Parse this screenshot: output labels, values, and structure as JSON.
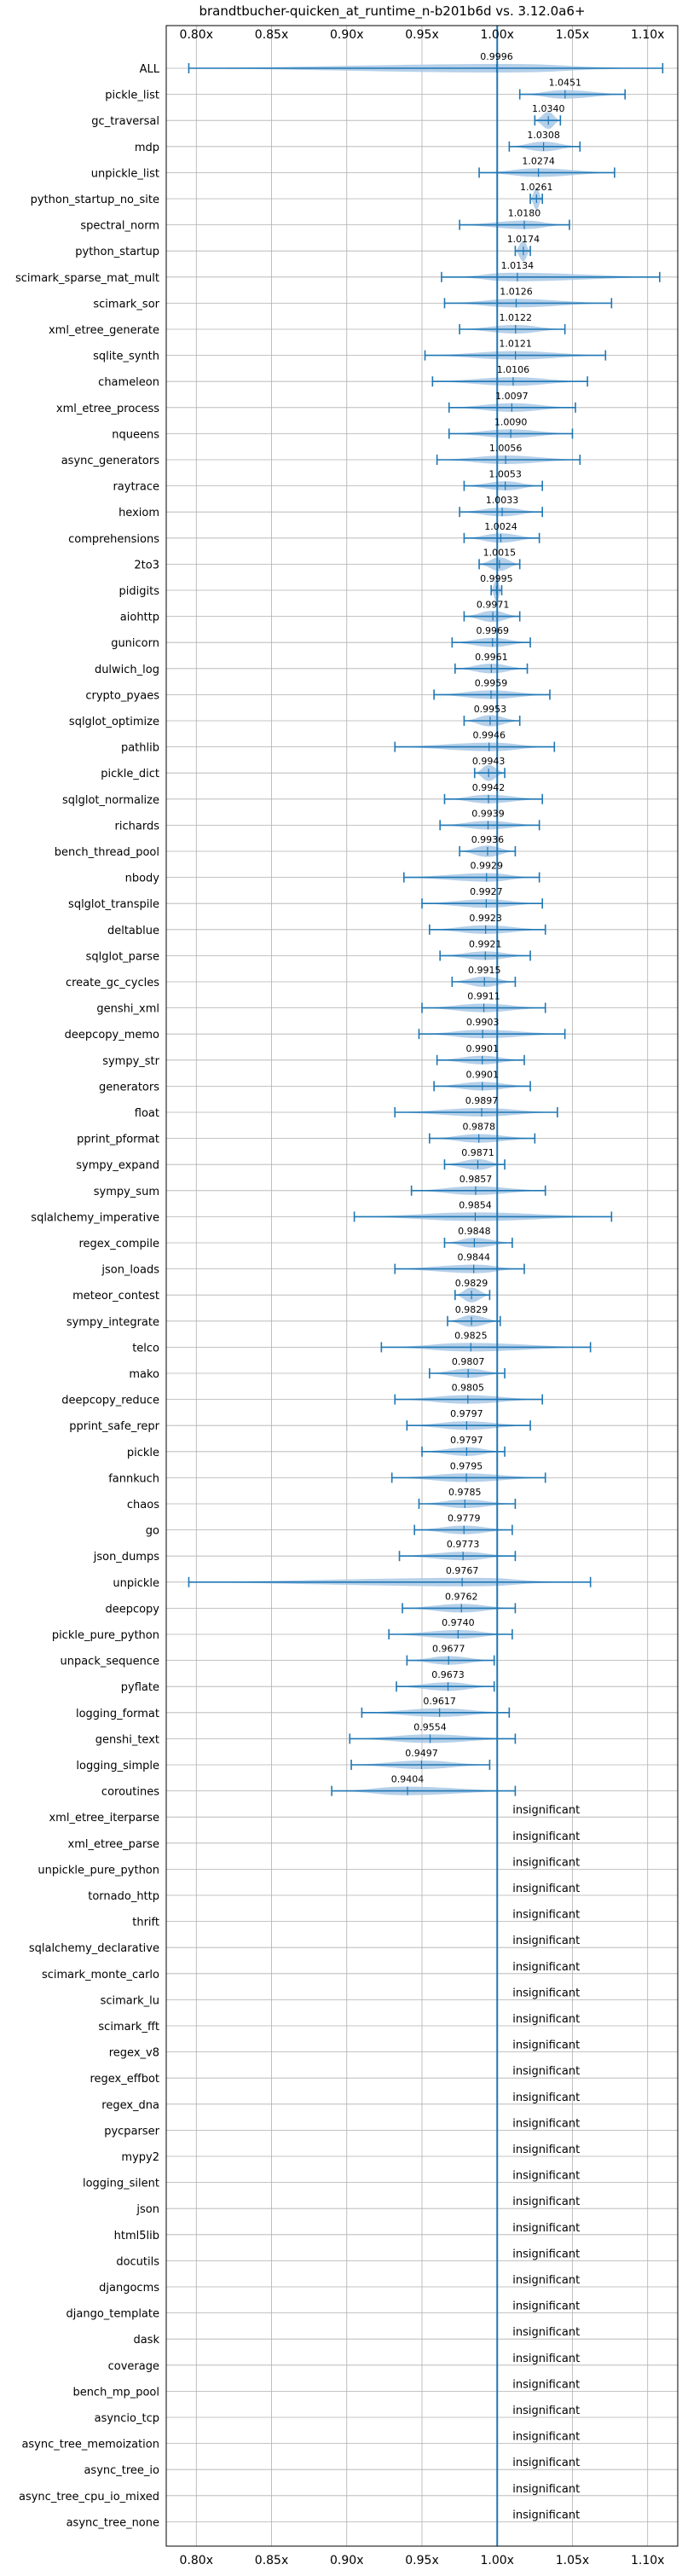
{
  "chart_data": {
    "type": "violin",
    "title": "brandtbucher-quicken_at_runtime_n-b201b6d vs. 3.12.0a6+",
    "xlim": [
      0.78,
      1.12
    ],
    "xticks": [
      "0.80x",
      "0.85x",
      "0.90x",
      "0.95x",
      "1.00x",
      "1.05x",
      "1.10x"
    ],
    "xtick_values": [
      0.8,
      0.85,
      0.9,
      0.95,
      1.0,
      1.05,
      1.1
    ],
    "reference_line": 1.0,
    "grid": true,
    "insignificant_label": "insignificant",
    "benchmarks": [
      {
        "name": "ALL",
        "median": 0.9996,
        "min": 0.795,
        "max": 1.11,
        "label": "0.9996"
      },
      {
        "name": "pickle_list",
        "median": 1.0451,
        "min": 1.015,
        "max": 1.085,
        "label": "1.0451"
      },
      {
        "name": "gc_traversal",
        "median": 1.034,
        "min": 1.025,
        "max": 1.042,
        "label": "1.0340"
      },
      {
        "name": "mdp",
        "median": 1.0308,
        "min": 1.008,
        "max": 1.055,
        "label": "1.0308"
      },
      {
        "name": "unpickle_list",
        "median": 1.0274,
        "min": 0.988,
        "max": 1.078,
        "label": "1.0274"
      },
      {
        "name": "python_startup_no_site",
        "median": 1.0261,
        "min": 1.022,
        "max": 1.03,
        "label": "1.0261"
      },
      {
        "name": "spectral_norm",
        "median": 1.018,
        "min": 0.975,
        "max": 1.048,
        "label": "1.0180"
      },
      {
        "name": "python_startup",
        "median": 1.0174,
        "min": 1.012,
        "max": 1.022,
        "label": "1.0174"
      },
      {
        "name": "scimark_sparse_mat_mult",
        "median": 1.0134,
        "min": 0.963,
        "max": 1.108,
        "label": "1.0134"
      },
      {
        "name": "scimark_sor",
        "median": 1.0126,
        "min": 0.965,
        "max": 1.076,
        "label": "1.0126"
      },
      {
        "name": "xml_etree_generate",
        "median": 1.0122,
        "min": 0.975,
        "max": 1.045,
        "label": "1.0122"
      },
      {
        "name": "sqlite_synth",
        "median": 1.0121,
        "min": 0.952,
        "max": 1.072,
        "label": "1.0121"
      },
      {
        "name": "chameleon",
        "median": 1.0106,
        "min": 0.957,
        "max": 1.06,
        "label": "1.0106"
      },
      {
        "name": "xml_etree_process",
        "median": 1.0097,
        "min": 0.968,
        "max": 1.052,
        "label": "1.0097"
      },
      {
        "name": "nqueens",
        "median": 1.009,
        "min": 0.968,
        "max": 1.05,
        "label": "1.0090"
      },
      {
        "name": "async_generators",
        "median": 1.0056,
        "min": 0.96,
        "max": 1.055,
        "label": "1.0056"
      },
      {
        "name": "raytrace",
        "median": 1.0053,
        "min": 0.978,
        "max": 1.03,
        "label": "1.0053"
      },
      {
        "name": "hexiom",
        "median": 1.0033,
        "min": 0.975,
        "max": 1.03,
        "label": "1.0033"
      },
      {
        "name": "comprehensions",
        "median": 1.0024,
        "min": 0.978,
        "max": 1.028,
        "label": "1.0024"
      },
      {
        "name": "2to3",
        "median": 1.0015,
        "min": 0.988,
        "max": 1.015,
        "label": "1.0015"
      },
      {
        "name": "pidigits",
        "median": 0.9995,
        "min": 0.996,
        "max": 1.003,
        "label": "0.9995"
      },
      {
        "name": "aiohttp",
        "median": 0.9971,
        "min": 0.978,
        "max": 1.015,
        "label": "0.9971"
      },
      {
        "name": "gunicorn",
        "median": 0.9969,
        "min": 0.97,
        "max": 1.022,
        "label": "0.9969"
      },
      {
        "name": "dulwich_log",
        "median": 0.9961,
        "min": 0.972,
        "max": 1.02,
        "label": "0.9961"
      },
      {
        "name": "crypto_pyaes",
        "median": 0.9959,
        "min": 0.958,
        "max": 1.035,
        "label": "0.9959"
      },
      {
        "name": "sqlglot_optimize",
        "median": 0.9953,
        "min": 0.978,
        "max": 1.015,
        "label": "0.9953"
      },
      {
        "name": "pathlib",
        "median": 0.9946,
        "min": 0.932,
        "max": 1.038,
        "label": "0.9946"
      },
      {
        "name": "pickle_dict",
        "median": 0.9943,
        "min": 0.985,
        "max": 1.005,
        "label": "0.9943"
      },
      {
        "name": "sqlglot_normalize",
        "median": 0.9942,
        "min": 0.965,
        "max": 1.03,
        "label": "0.9942"
      },
      {
        "name": "richards",
        "median": 0.9939,
        "min": 0.962,
        "max": 1.028,
        "label": "0.9939"
      },
      {
        "name": "bench_thread_pool",
        "median": 0.9936,
        "min": 0.975,
        "max": 1.012,
        "label": "0.9936"
      },
      {
        "name": "nbody",
        "median": 0.9929,
        "min": 0.938,
        "max": 1.028,
        "label": "0.9929"
      },
      {
        "name": "sqlglot_transpile",
        "median": 0.9927,
        "min": 0.95,
        "max": 1.03,
        "label": "0.9927"
      },
      {
        "name": "deltablue",
        "median": 0.9923,
        "min": 0.955,
        "max": 1.032,
        "label": "0.9923"
      },
      {
        "name": "sqlglot_parse",
        "median": 0.9921,
        "min": 0.962,
        "max": 1.022,
        "label": "0.9921"
      },
      {
        "name": "create_gc_cycles",
        "median": 0.9915,
        "min": 0.97,
        "max": 1.012,
        "label": "0.9915"
      },
      {
        "name": "genshi_xml",
        "median": 0.9911,
        "min": 0.95,
        "max": 1.032,
        "label": "0.9911"
      },
      {
        "name": "deepcopy_memo",
        "median": 0.9903,
        "min": 0.948,
        "max": 1.045,
        "label": "0.9903"
      },
      {
        "name": "sympy_str",
        "median": 0.9901,
        "min": 0.96,
        "max": 1.018,
        "label": "0.9901"
      },
      {
        "name": "generators",
        "median": 0.9901,
        "min": 0.958,
        "max": 1.022,
        "label": "0.9901"
      },
      {
        "name": "float",
        "median": 0.9897,
        "min": 0.932,
        "max": 1.04,
        "label": "0.9897"
      },
      {
        "name": "pprint_pformat",
        "median": 0.9878,
        "min": 0.955,
        "max": 1.025,
        "label": "0.9878"
      },
      {
        "name": "sympy_expand",
        "median": 0.9871,
        "min": 0.965,
        "max": 1.005,
        "label": "0.9871"
      },
      {
        "name": "sympy_sum",
        "median": 0.9857,
        "min": 0.943,
        "max": 1.032,
        "label": "0.9857"
      },
      {
        "name": "sqlalchemy_imperative",
        "median": 0.9854,
        "min": 0.905,
        "max": 1.076,
        "label": "0.9854"
      },
      {
        "name": "regex_compile",
        "median": 0.9848,
        "min": 0.965,
        "max": 1.01,
        "label": "0.9848"
      },
      {
        "name": "json_loads",
        "median": 0.9844,
        "min": 0.932,
        "max": 1.018,
        "label": "0.9844"
      },
      {
        "name": "meteor_contest",
        "median": 0.9829,
        "min": 0.972,
        "max": 0.995,
        "label": "0.9829"
      },
      {
        "name": "sympy_integrate",
        "median": 0.9829,
        "min": 0.967,
        "max": 1.002,
        "label": "0.9829"
      },
      {
        "name": "telco",
        "median": 0.9825,
        "min": 0.923,
        "max": 1.062,
        "label": "0.9825"
      },
      {
        "name": "mako",
        "median": 0.9807,
        "min": 0.955,
        "max": 1.005,
        "label": "0.9807"
      },
      {
        "name": "deepcopy_reduce",
        "median": 0.9805,
        "min": 0.932,
        "max": 1.03,
        "label": "0.9805"
      },
      {
        "name": "pprint_safe_repr",
        "median": 0.9797,
        "min": 0.94,
        "max": 1.022,
        "label": "0.9797"
      },
      {
        "name": "pickle",
        "median": 0.9797,
        "min": 0.95,
        "max": 1.005,
        "label": "0.9797"
      },
      {
        "name": "fannkuch",
        "median": 0.9795,
        "min": 0.93,
        "max": 1.032,
        "label": "0.9795"
      },
      {
        "name": "chaos",
        "median": 0.9785,
        "min": 0.948,
        "max": 1.012,
        "label": "0.9785"
      },
      {
        "name": "go",
        "median": 0.9779,
        "min": 0.945,
        "max": 1.01,
        "label": "0.9779"
      },
      {
        "name": "json_dumps",
        "median": 0.9773,
        "min": 0.935,
        "max": 1.012,
        "label": "0.9773"
      },
      {
        "name": "unpickle",
        "median": 0.9767,
        "min": 0.795,
        "max": 1.062,
        "label": "0.9767"
      },
      {
        "name": "deepcopy",
        "median": 0.9762,
        "min": 0.937,
        "max": 1.012,
        "label": "0.9762"
      },
      {
        "name": "pickle_pure_python",
        "median": 0.974,
        "min": 0.928,
        "max": 1.01,
        "label": "0.9740"
      },
      {
        "name": "unpack_sequence",
        "median": 0.9677,
        "min": 0.94,
        "max": 0.998,
        "label": "0.9677"
      },
      {
        "name": "pyflate",
        "median": 0.9673,
        "min": 0.933,
        "max": 0.998,
        "label": "0.9673"
      },
      {
        "name": "logging_format",
        "median": 0.9617,
        "min": 0.91,
        "max": 1.008,
        "label": "0.9617"
      },
      {
        "name": "genshi_text",
        "median": 0.9554,
        "min": 0.902,
        "max": 1.012,
        "label": "0.9554"
      },
      {
        "name": "logging_simple",
        "median": 0.9497,
        "min": 0.903,
        "max": 0.995,
        "label": "0.9497"
      },
      {
        "name": "coroutines",
        "median": 0.9404,
        "min": 0.89,
        "max": 1.012,
        "label": "0.9404"
      },
      {
        "name": "xml_etree_iterparse",
        "insignificant": true
      },
      {
        "name": "xml_etree_parse",
        "insignificant": true
      },
      {
        "name": "unpickle_pure_python",
        "insignificant": true
      },
      {
        "name": "tornado_http",
        "insignificant": true
      },
      {
        "name": "thrift",
        "insignificant": true
      },
      {
        "name": "sqlalchemy_declarative",
        "insignificant": true
      },
      {
        "name": "scimark_monte_carlo",
        "insignificant": true
      },
      {
        "name": "scimark_lu",
        "insignificant": true
      },
      {
        "name": "scimark_fft",
        "insignificant": true
      },
      {
        "name": "regex_v8",
        "insignificant": true
      },
      {
        "name": "regex_effbot",
        "insignificant": true
      },
      {
        "name": "regex_dna",
        "insignificant": true
      },
      {
        "name": "pycparser",
        "insignificant": true
      },
      {
        "name": "mypy2",
        "insignificant": true
      },
      {
        "name": "logging_silent",
        "insignificant": true
      },
      {
        "name": "json",
        "insignificant": true
      },
      {
        "name": "html5lib",
        "insignificant": true
      },
      {
        "name": "docutils",
        "insignificant": true
      },
      {
        "name": "djangocms",
        "insignificant": true
      },
      {
        "name": "django_template",
        "insignificant": true
      },
      {
        "name": "dask",
        "insignificant": true
      },
      {
        "name": "coverage",
        "insignificant": true
      },
      {
        "name": "bench_mp_pool",
        "insignificant": true
      },
      {
        "name": "asyncio_tcp",
        "insignificant": true
      },
      {
        "name": "async_tree_memoization",
        "insignificant": true
      },
      {
        "name": "async_tree_io",
        "insignificant": true
      },
      {
        "name": "async_tree_cpu_io_mixed",
        "insignificant": true
      },
      {
        "name": "async_tree_none",
        "insignificant": true
      }
    ]
  },
  "colors": {
    "violin": "#a9c8e5",
    "line": "#1f77b4",
    "grid": "#b0b0b0"
  }
}
